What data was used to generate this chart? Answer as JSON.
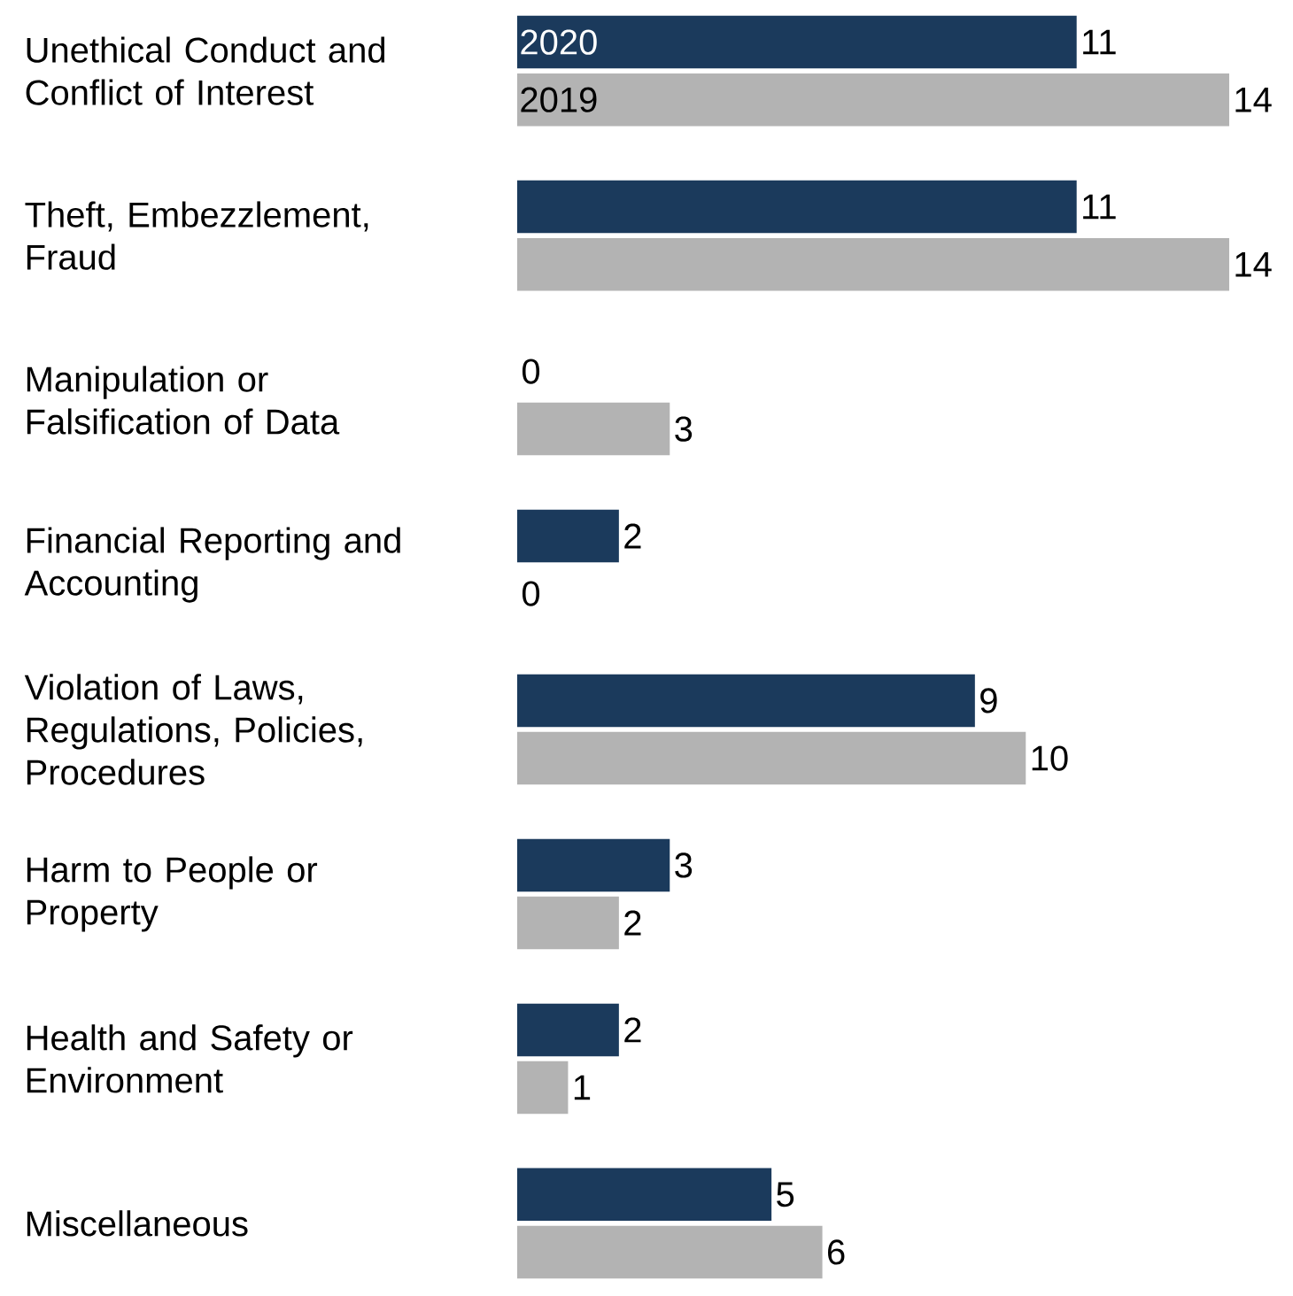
{
  "chart_data": {
    "type": "bar",
    "orientation": "horizontal",
    "categories": [
      "Unethical Conduct and Conflict of Interest",
      "Theft, Embezzlement, Fraud",
      "Manipulation or Falsification of Data",
      "Financial Reporting and Accounting",
      "Violation of Laws, Regulations, Policies, Procedures",
      "Harm to People or Property",
      "Health and Safety or Environment",
      "Miscellaneous"
    ],
    "series": [
      {
        "name": "2020",
        "color": "#1b3a5c",
        "values": [
          11,
          11,
          0,
          2,
          9,
          3,
          2,
          5
        ]
      },
      {
        "name": "2019",
        "color": "#b3b3b3",
        "values": [
          14,
          14,
          3,
          0,
          10,
          2,
          1,
          6
        ]
      }
    ],
    "data_labels": true,
    "tick_labels": "y",
    "legend": false
  }
}
